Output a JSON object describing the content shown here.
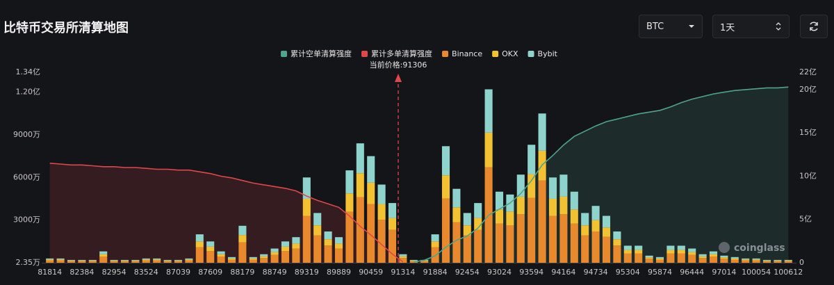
{
  "header": {
    "title": "比特币交易所清算地图",
    "symbol": "BTC",
    "period": "1天"
  },
  "watermark": "coinglass",
  "chart_data": {
    "type": "bar",
    "stacked": true,
    "annotation": "当前价格:91306",
    "categories": [
      "81814",
      null,
      null,
      "82384",
      null,
      null,
      "82954",
      null,
      null,
      "83524",
      null,
      null,
      "87039",
      null,
      null,
      "87609",
      null,
      null,
      "88179",
      null,
      null,
      "88749",
      null,
      null,
      "89319",
      null,
      null,
      "89889",
      null,
      null,
      "90459",
      null,
      null,
      "91314",
      null,
      null,
      "91884",
      null,
      null,
      "92454",
      null,
      null,
      "93024",
      null,
      null,
      "93594",
      null,
      null,
      "94164",
      null,
      null,
      "94734",
      null,
      null,
      "95304",
      null,
      null,
      "95874",
      null,
      null,
      "96444",
      null,
      null,
      "97014",
      null,
      null,
      "100054",
      null,
      null,
      "100612"
    ],
    "ylim": [
      23500,
      134000000
    ],
    "yticks": [
      {
        "value": 23500,
        "label": "2.35万"
      },
      {
        "value": 30000000,
        "label": "3000万"
      },
      {
        "value": 60000000,
        "label": "6000万"
      },
      {
        "value": 90000000,
        "label": "9000万"
      },
      {
        "value": 120000000,
        "label": "1.20亿"
      },
      {
        "value": 134000000,
        "label": "1.34亿"
      }
    ],
    "y2lim": [
      0,
      2200000000
    ],
    "y2ticks": [
      0,
      {
        "value": 500000000,
        "label": "5亿"
      },
      {
        "value": 1000000000,
        "label": "10亿"
      },
      {
        "value": 1500000000,
        "label": "15亿"
      },
      {
        "value": 2000000000,
        "label": "20亿"
      },
      {
        "value": 2200000000,
        "label": "22亿"
      }
    ],
    "grid": false,
    "legend": "top",
    "series": [
      {
        "name": "累计空单清算强度",
        "type": "line",
        "axis": "y2",
        "area": true,
        "color": "#4fa58b",
        "values": [
          null,
          null,
          null,
          null,
          null,
          null,
          null,
          null,
          null,
          null,
          null,
          null,
          null,
          null,
          null,
          null,
          null,
          null,
          null,
          null,
          null,
          null,
          null,
          null,
          null,
          null,
          null,
          null,
          null,
          null,
          null,
          null,
          null,
          null,
          10000000,
          30000000,
          80000000,
          180000000,
          260000000,
          310000000,
          400000000,
          550000000,
          620000000,
          690000000,
          800000000,
          950000000,
          1130000000,
          1240000000,
          1360000000,
          1460000000,
          1520000000,
          1580000000,
          1630000000,
          1660000000,
          1690000000,
          1720000000,
          1740000000,
          1760000000,
          1800000000,
          1850000000,
          1890000000,
          1920000000,
          1950000000,
          1970000000,
          1990000000,
          2000000000,
          2010000000,
          2020000000,
          2020000000,
          2030000000
        ]
      },
      {
        "name": "累计多单清算强度",
        "type": "line",
        "axis": "y2",
        "area": true,
        "color": "#e0474c",
        "values": [
          1150000000,
          1140000000,
          1130000000,
          1130000000,
          1120000000,
          1110000000,
          1110000000,
          1100000000,
          1100000000,
          1090000000,
          1080000000,
          1080000000,
          1070000000,
          1070000000,
          1050000000,
          1030000000,
          1000000000,
          980000000,
          950000000,
          920000000,
          900000000,
          880000000,
          860000000,
          830000000,
          770000000,
          720000000,
          680000000,
          640000000,
          540000000,
          420000000,
          320000000,
          210000000,
          100000000,
          10000000,
          null,
          null,
          null,
          null,
          null,
          null,
          null,
          null,
          null,
          null,
          null,
          null,
          null,
          null,
          null,
          null,
          null,
          null,
          null,
          null,
          null,
          null,
          null,
          null,
          null,
          null,
          null,
          null,
          null,
          null,
          null,
          null,
          null,
          null,
          null,
          null
        ]
      },
      {
        "name": "Binance",
        "type": "bar",
        "color": "#e8892e",
        "values": [
          1700000,
          1700000,
          1100000,
          1100000,
          1100000,
          4400000,
          1100000,
          1100000,
          1100000,
          1700000,
          1700000,
          1100000,
          1100000,
          1700000,
          11000000,
          8300000,
          4400000,
          2200000,
          14300000,
          2200000,
          3300000,
          5500000,
          8300000,
          9900000,
          33000000,
          19300000,
          12100000,
          9900000,
          35800000,
          46200000,
          41300000,
          30300000,
          23100000,
          3300000,
          1100000,
          1100000,
          11000000,
          45100000,
          28600000,
          19300000,
          23100000,
          67100000,
          27500000,
          26400000,
          34100000,
          45700000,
          57800000,
          33000000,
          34100000,
          27500000,
          19300000,
          22000000,
          18200000,
          12100000,
          6600000,
          6600000,
          2800000,
          2200000,
          6600000,
          6600000,
          5500000,
          3300000,
          4400000,
          2800000,
          2200000,
          1700000,
          1700000,
          1100000,
          1100000,
          1100000
        ]
      },
      {
        "name": "OKX",
        "type": "bar",
        "color": "#f2c232",
        "values": [
          600000,
          600000,
          400000,
          400000,
          400000,
          1600000,
          400000,
          400000,
          400000,
          600000,
          600000,
          400000,
          400000,
          600000,
          4000000,
          3000000,
          1600000,
          800000,
          5200000,
          800000,
          1200000,
          2000000,
          3000000,
          3600000,
          12000000,
          7000000,
          4400000,
          3600000,
          13000000,
          16800000,
          15000000,
          11000000,
          8400000,
          1200000,
          400000,
          400000,
          4000000,
          16400000,
          10400000,
          7000000,
          8400000,
          24400000,
          10000000,
          9600000,
          12400000,
          16600000,
          21000000,
          12000000,
          12400000,
          10000000,
          7000000,
          8000000,
          6600000,
          4400000,
          2400000,
          2400000,
          1000000,
          800000,
          2400000,
          2400000,
          2000000,
          1200000,
          1600000,
          1000000,
          800000,
          600000,
          600000,
          400000,
          400000,
          400000
        ]
      },
      {
        "name": "Bybit",
        "type": "bar",
        "color": "#8fd3cd",
        "values": [
          700000,
          700000,
          500000,
          500000,
          500000,
          2000000,
          500000,
          500000,
          500000,
          700000,
          700000,
          500000,
          500000,
          700000,
          5000000,
          3700000,
          2000000,
          1000000,
          6500000,
          1000000,
          1500000,
          2500000,
          3700000,
          4500000,
          15000000,
          8700000,
          5500000,
          4500000,
          16200000,
          21000000,
          18700000,
          13700000,
          10500000,
          1500000,
          500000,
          500000,
          5000000,
          20500000,
          13000000,
          8700000,
          10500000,
          30500000,
          12500000,
          12000000,
          15500000,
          20700000,
          26200000,
          15000000,
          15500000,
          12500000,
          8700000,
          10000000,
          8200000,
          5500000,
          3000000,
          3000000,
          1200000,
          1000000,
          3000000,
          3000000,
          2500000,
          1500000,
          2000000,
          1200000,
          1000000,
          700000,
          700000,
          500000,
          500000,
          500000
        ]
      }
    ]
  }
}
